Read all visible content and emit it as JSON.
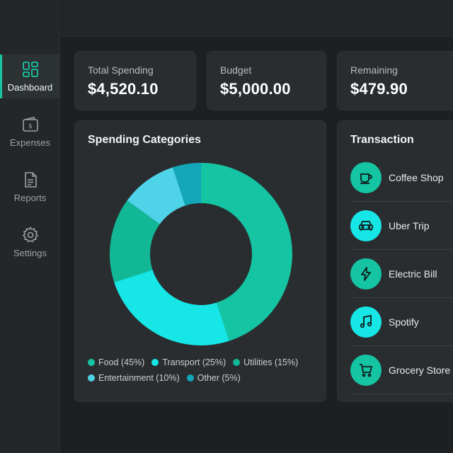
{
  "sidebar": {
    "items": [
      {
        "label": "Dashboard",
        "icon": "dashboard-icon",
        "active": true
      },
      {
        "label": "Expenses",
        "icon": "wallet-icon",
        "active": false
      },
      {
        "label": "Reports",
        "icon": "document-icon",
        "active": false
      },
      {
        "label": "Settings",
        "icon": "gear-icon",
        "active": false
      }
    ]
  },
  "stats": [
    {
      "label": "Total Spending",
      "value": "$4,520.10"
    },
    {
      "label": "Budget",
      "value": "$5,000.00"
    },
    {
      "label": "Remaining",
      "value": "$479.90"
    }
  ],
  "categories_card": {
    "title": "Spending Categories"
  },
  "chart_data": {
    "type": "pie",
    "title": "Spending Categories",
    "categories": [
      "Food",
      "Transport",
      "Utilities",
      "Entertainment",
      "Other"
    ],
    "values": [
      45,
      25,
      15,
      10,
      5
    ],
    "colors": [
      "#14c4a2",
      "#17e6e6",
      "#12b896",
      "#4fd3e8",
      "#12a6b8"
    ],
    "legend": [
      "Food (45%)",
      "Transport (25%)",
      "Utilities (15%)",
      "Entertainment (10%)",
      "Other (5%)"
    ],
    "legend_placement": "bottom"
  },
  "transactions_card": {
    "title": "Transaction",
    "items": [
      {
        "name": "Coffee Shop",
        "icon": "coffee-cup-icon",
        "color": "#14c4a2"
      },
      {
        "name": "Uber Trip",
        "icon": "car-icon",
        "color": "#17e6e6"
      },
      {
        "name": "Electric Bill",
        "icon": "lightning-icon",
        "color": "#14c4a2"
      },
      {
        "name": "Spotify",
        "icon": "music-note-icon",
        "color": "#17e6e6"
      },
      {
        "name": "Grocery Store",
        "icon": "shopping-cart-icon",
        "color": "#14c4a2"
      }
    ]
  },
  "colors": {
    "accent": "#1bc4a0",
    "background": "#1d2022",
    "card": "#2a2d30"
  }
}
